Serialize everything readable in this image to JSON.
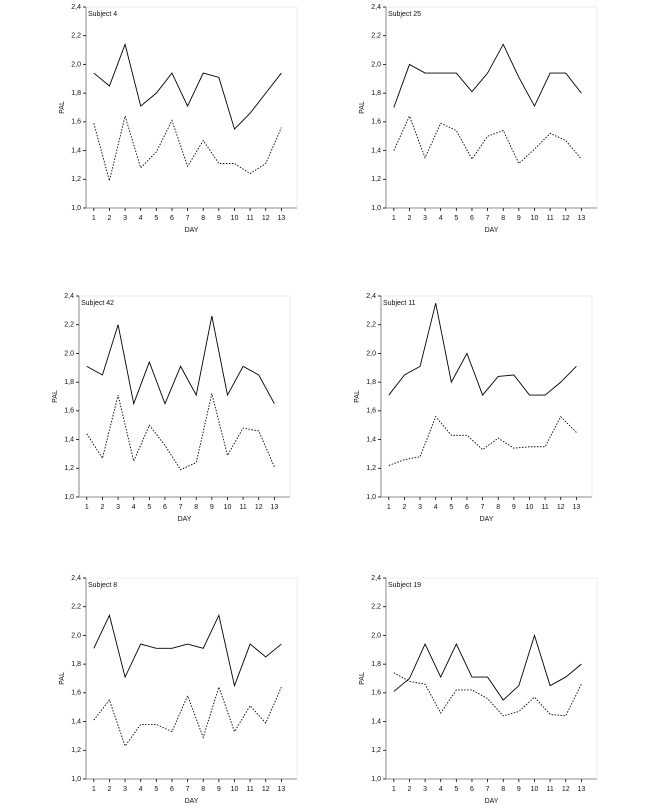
{
  "chart_data": [
    {
      "type": "line",
      "title": "Subject 4",
      "xlabel": "DAY",
      "ylabel": "PAL",
      "x": [
        1,
        2,
        3,
        4,
        5,
        6,
        7,
        8,
        9,
        10,
        11,
        12,
        13
      ],
      "xlim": [
        0.5,
        14
      ],
      "xticks": [
        1,
        2,
        3,
        4,
        5,
        6,
        7,
        8,
        9,
        10,
        11,
        12,
        13
      ],
      "ylim": [
        1.0,
        2.4
      ],
      "yticks": [
        {
          "value": 1.0,
          "label": "1,0"
        },
        {
          "value": 1.2,
          "label": "1,2"
        },
        {
          "value": 1.4,
          "label": "1,4"
        },
        {
          "value": 1.6,
          "label": "1,6"
        },
        {
          "value": 1.8,
          "label": "1,8"
        },
        {
          "value": 2.0,
          "label": "2,0"
        },
        {
          "value": 2.2,
          "label": "2,2"
        },
        {
          "value": 2.4,
          "label": "2,4"
        }
      ],
      "series": [
        {
          "color": "#000000",
          "dash": "solid",
          "values": [
            1.94,
            1.85,
            2.14,
            1.71,
            1.8,
            1.94,
            1.71,
            1.94,
            1.91,
            1.55,
            1.66,
            1.8,
            1.94
          ]
        },
        {
          "color": "#000000",
          "dash": "dotted",
          "values": [
            1.59,
            1.19,
            1.64,
            1.28,
            1.39,
            1.61,
            1.29,
            1.47,
            1.31,
            1.31,
            1.24,
            1.31,
            1.56
          ]
        }
      ]
    },
    {
      "type": "line",
      "title": "Subject 25",
      "xlabel": "DAY",
      "ylabel": "PAL",
      "x": [
        1,
        2,
        3,
        4,
        5,
        6,
        7,
        8,
        9,
        10,
        11,
        12,
        13
      ],
      "xlim": [
        0.5,
        14
      ],
      "xticks": [
        1,
        2,
        3,
        4,
        5,
        6,
        7,
        8,
        9,
        10,
        11,
        12,
        13
      ],
      "ylim": [
        1.0,
        2.4
      ],
      "yticks": [
        {
          "value": 1.0,
          "label": "1,0"
        },
        {
          "value": 1.2,
          "label": "1,2"
        },
        {
          "value": 1.4,
          "label": "1,4"
        },
        {
          "value": 1.6,
          "label": "1,6"
        },
        {
          "value": 1.8,
          "label": "1,8"
        },
        {
          "value": 2.0,
          "label": "2,0"
        },
        {
          "value": 2.2,
          "label": "2,2"
        },
        {
          "value": 2.4,
          "label": "2,4"
        }
      ],
      "series": [
        {
          "color": "#000000",
          "dash": "solid",
          "values": [
            1.7,
            2.0,
            1.94,
            1.94,
            1.94,
            1.81,
            1.94,
            2.14,
            1.91,
            1.71,
            1.94,
            1.94,
            1.8
          ]
        },
        {
          "color": "#000000",
          "dash": "dotted",
          "values": [
            1.4,
            1.64,
            1.35,
            1.59,
            1.54,
            1.34,
            1.5,
            1.54,
            1.31,
            1.41,
            1.52,
            1.47,
            1.34
          ]
        }
      ]
    },
    {
      "type": "line",
      "title": "Subject 42",
      "xlabel": "DAY",
      "ylabel": "PAL",
      "x": [
        1,
        2,
        3,
        4,
        5,
        6,
        7,
        8,
        9,
        10,
        11,
        12,
        13
      ],
      "xlim": [
        0.5,
        14
      ],
      "xticks": [
        1,
        2,
        3,
        4,
        5,
        6,
        7,
        8,
        9,
        10,
        11,
        12,
        13
      ],
      "ylim": [
        1.0,
        2.4
      ],
      "yticks": [
        {
          "value": 1.0,
          "label": "1,0"
        },
        {
          "value": 1.2,
          "label": "1,2"
        },
        {
          "value": 1.4,
          "label": "1,4"
        },
        {
          "value": 1.6,
          "label": "1,6"
        },
        {
          "value": 1.8,
          "label": "1,8"
        },
        {
          "value": 2.0,
          "label": "2,0"
        },
        {
          "value": 2.2,
          "label": "2,2"
        },
        {
          "value": 2.4,
          "label": "2,4"
        }
      ],
      "series": [
        {
          "color": "#000000",
          "dash": "solid",
          "values": [
            1.91,
            1.85,
            2.2,
            1.65,
            1.94,
            1.65,
            1.91,
            1.71,
            2.26,
            1.71,
            1.91,
            1.85,
            1.65
          ]
        },
        {
          "color": "#000000",
          "dash": "dotted",
          "values": [
            1.44,
            1.27,
            1.71,
            1.25,
            1.5,
            1.36,
            1.19,
            1.24,
            1.72,
            1.29,
            1.48,
            1.46,
            1.21
          ]
        }
      ]
    },
    {
      "type": "line",
      "title": "Subject 11",
      "xlabel": "DAY",
      "ylabel": "PAL",
      "x": [
        1,
        2,
        3,
        4,
        5,
        6,
        7,
        8,
        9,
        10,
        11,
        12,
        13
      ],
      "xlim": [
        0.5,
        14
      ],
      "xticks": [
        1,
        2,
        3,
        4,
        5,
        6,
        7,
        8,
        9,
        10,
        11,
        12,
        13
      ],
      "ylim": [
        1.0,
        2.4
      ],
      "yticks": [
        {
          "value": 1.0,
          "label": "1,0"
        },
        {
          "value": 1.2,
          "label": "1,2"
        },
        {
          "value": 1.4,
          "label": "1,4"
        },
        {
          "value": 1.6,
          "label": "1,6"
        },
        {
          "value": 1.8,
          "label": "1,8"
        },
        {
          "value": 2.0,
          "label": "2,0"
        },
        {
          "value": 2.2,
          "label": "2,2"
        },
        {
          "value": 2.4,
          "label": "2,4"
        }
      ],
      "series": [
        {
          "color": "#000000",
          "dash": "solid",
          "values": [
            1.71,
            1.85,
            1.91,
            2.35,
            1.8,
            2.0,
            1.71,
            1.84,
            1.85,
            1.71,
            1.71,
            1.8,
            1.91
          ]
        },
        {
          "color": "#000000",
          "dash": "dotted",
          "values": [
            1.22,
            1.26,
            1.28,
            1.56,
            1.43,
            1.43,
            1.33,
            1.41,
            1.34,
            1.35,
            1.35,
            1.56,
            1.45
          ]
        }
      ]
    },
    {
      "type": "line",
      "title": "Subject 8",
      "xlabel": "DAY",
      "ylabel": "PAL",
      "x": [
        1,
        2,
        3,
        4,
        5,
        6,
        7,
        8,
        9,
        10,
        11,
        12,
        13
      ],
      "xlim": [
        0.5,
        14
      ],
      "xticks": [
        1,
        2,
        3,
        4,
        5,
        6,
        7,
        8,
        9,
        10,
        11,
        12,
        13
      ],
      "ylim": [
        1.0,
        2.4
      ],
      "yticks": [
        {
          "value": 1.0,
          "label": "1,0"
        },
        {
          "value": 1.2,
          "label": "1,2"
        },
        {
          "value": 1.4,
          "label": "1,4"
        },
        {
          "value": 1.6,
          "label": "1,6"
        },
        {
          "value": 1.8,
          "label": "1,8"
        },
        {
          "value": 2.0,
          "label": "2,0"
        },
        {
          "value": 2.2,
          "label": "2,2"
        },
        {
          "value": 2.4,
          "label": "2,4"
        }
      ],
      "series": [
        {
          "color": "#000000",
          "dash": "solid",
          "values": [
            1.91,
            2.14,
            1.71,
            1.94,
            1.91,
            1.91,
            1.94,
            1.91,
            2.14,
            1.65,
            1.94,
            1.85,
            1.94
          ]
        },
        {
          "color": "#000000",
          "dash": "dotted",
          "values": [
            1.41,
            1.55,
            1.23,
            1.38,
            1.38,
            1.33,
            1.58,
            1.29,
            1.64,
            1.33,
            1.51,
            1.39,
            1.64
          ]
        }
      ]
    },
    {
      "type": "line",
      "title": "Subject 19",
      "xlabel": "DAY",
      "ylabel": "PAL",
      "x": [
        1,
        2,
        3,
        4,
        5,
        6,
        7,
        8,
        9,
        10,
        11,
        12,
        13
      ],
      "xlim": [
        0.5,
        14
      ],
      "xticks": [
        1,
        2,
        3,
        4,
        5,
        6,
        7,
        8,
        9,
        10,
        11,
        12,
        13
      ],
      "ylim": [
        1.0,
        2.4
      ],
      "yticks": [
        {
          "value": 1.0,
          "label": "1,0"
        },
        {
          "value": 1.2,
          "label": "1,2"
        },
        {
          "value": 1.4,
          "label": "1,4"
        },
        {
          "value": 1.6,
          "label": "1,6"
        },
        {
          "value": 1.8,
          "label": "1,8"
        },
        {
          "value": 2.0,
          "label": "2,0"
        },
        {
          "value": 2.2,
          "label": "2,2"
        },
        {
          "value": 2.4,
          "label": "2,4"
        }
      ],
      "series": [
        {
          "color": "#000000",
          "dash": "solid",
          "values": [
            1.61,
            1.7,
            1.94,
            1.71,
            1.94,
            1.71,
            1.71,
            1.55,
            1.65,
            2.0,
            1.65,
            1.71,
            1.8
          ]
        },
        {
          "color": "#000000",
          "dash": "dotted",
          "values": [
            1.74,
            1.68,
            1.66,
            1.46,
            1.62,
            1.62,
            1.56,
            1.44,
            1.47,
            1.57,
            1.45,
            1.44,
            1.66
          ]
        }
      ]
    }
  ]
}
